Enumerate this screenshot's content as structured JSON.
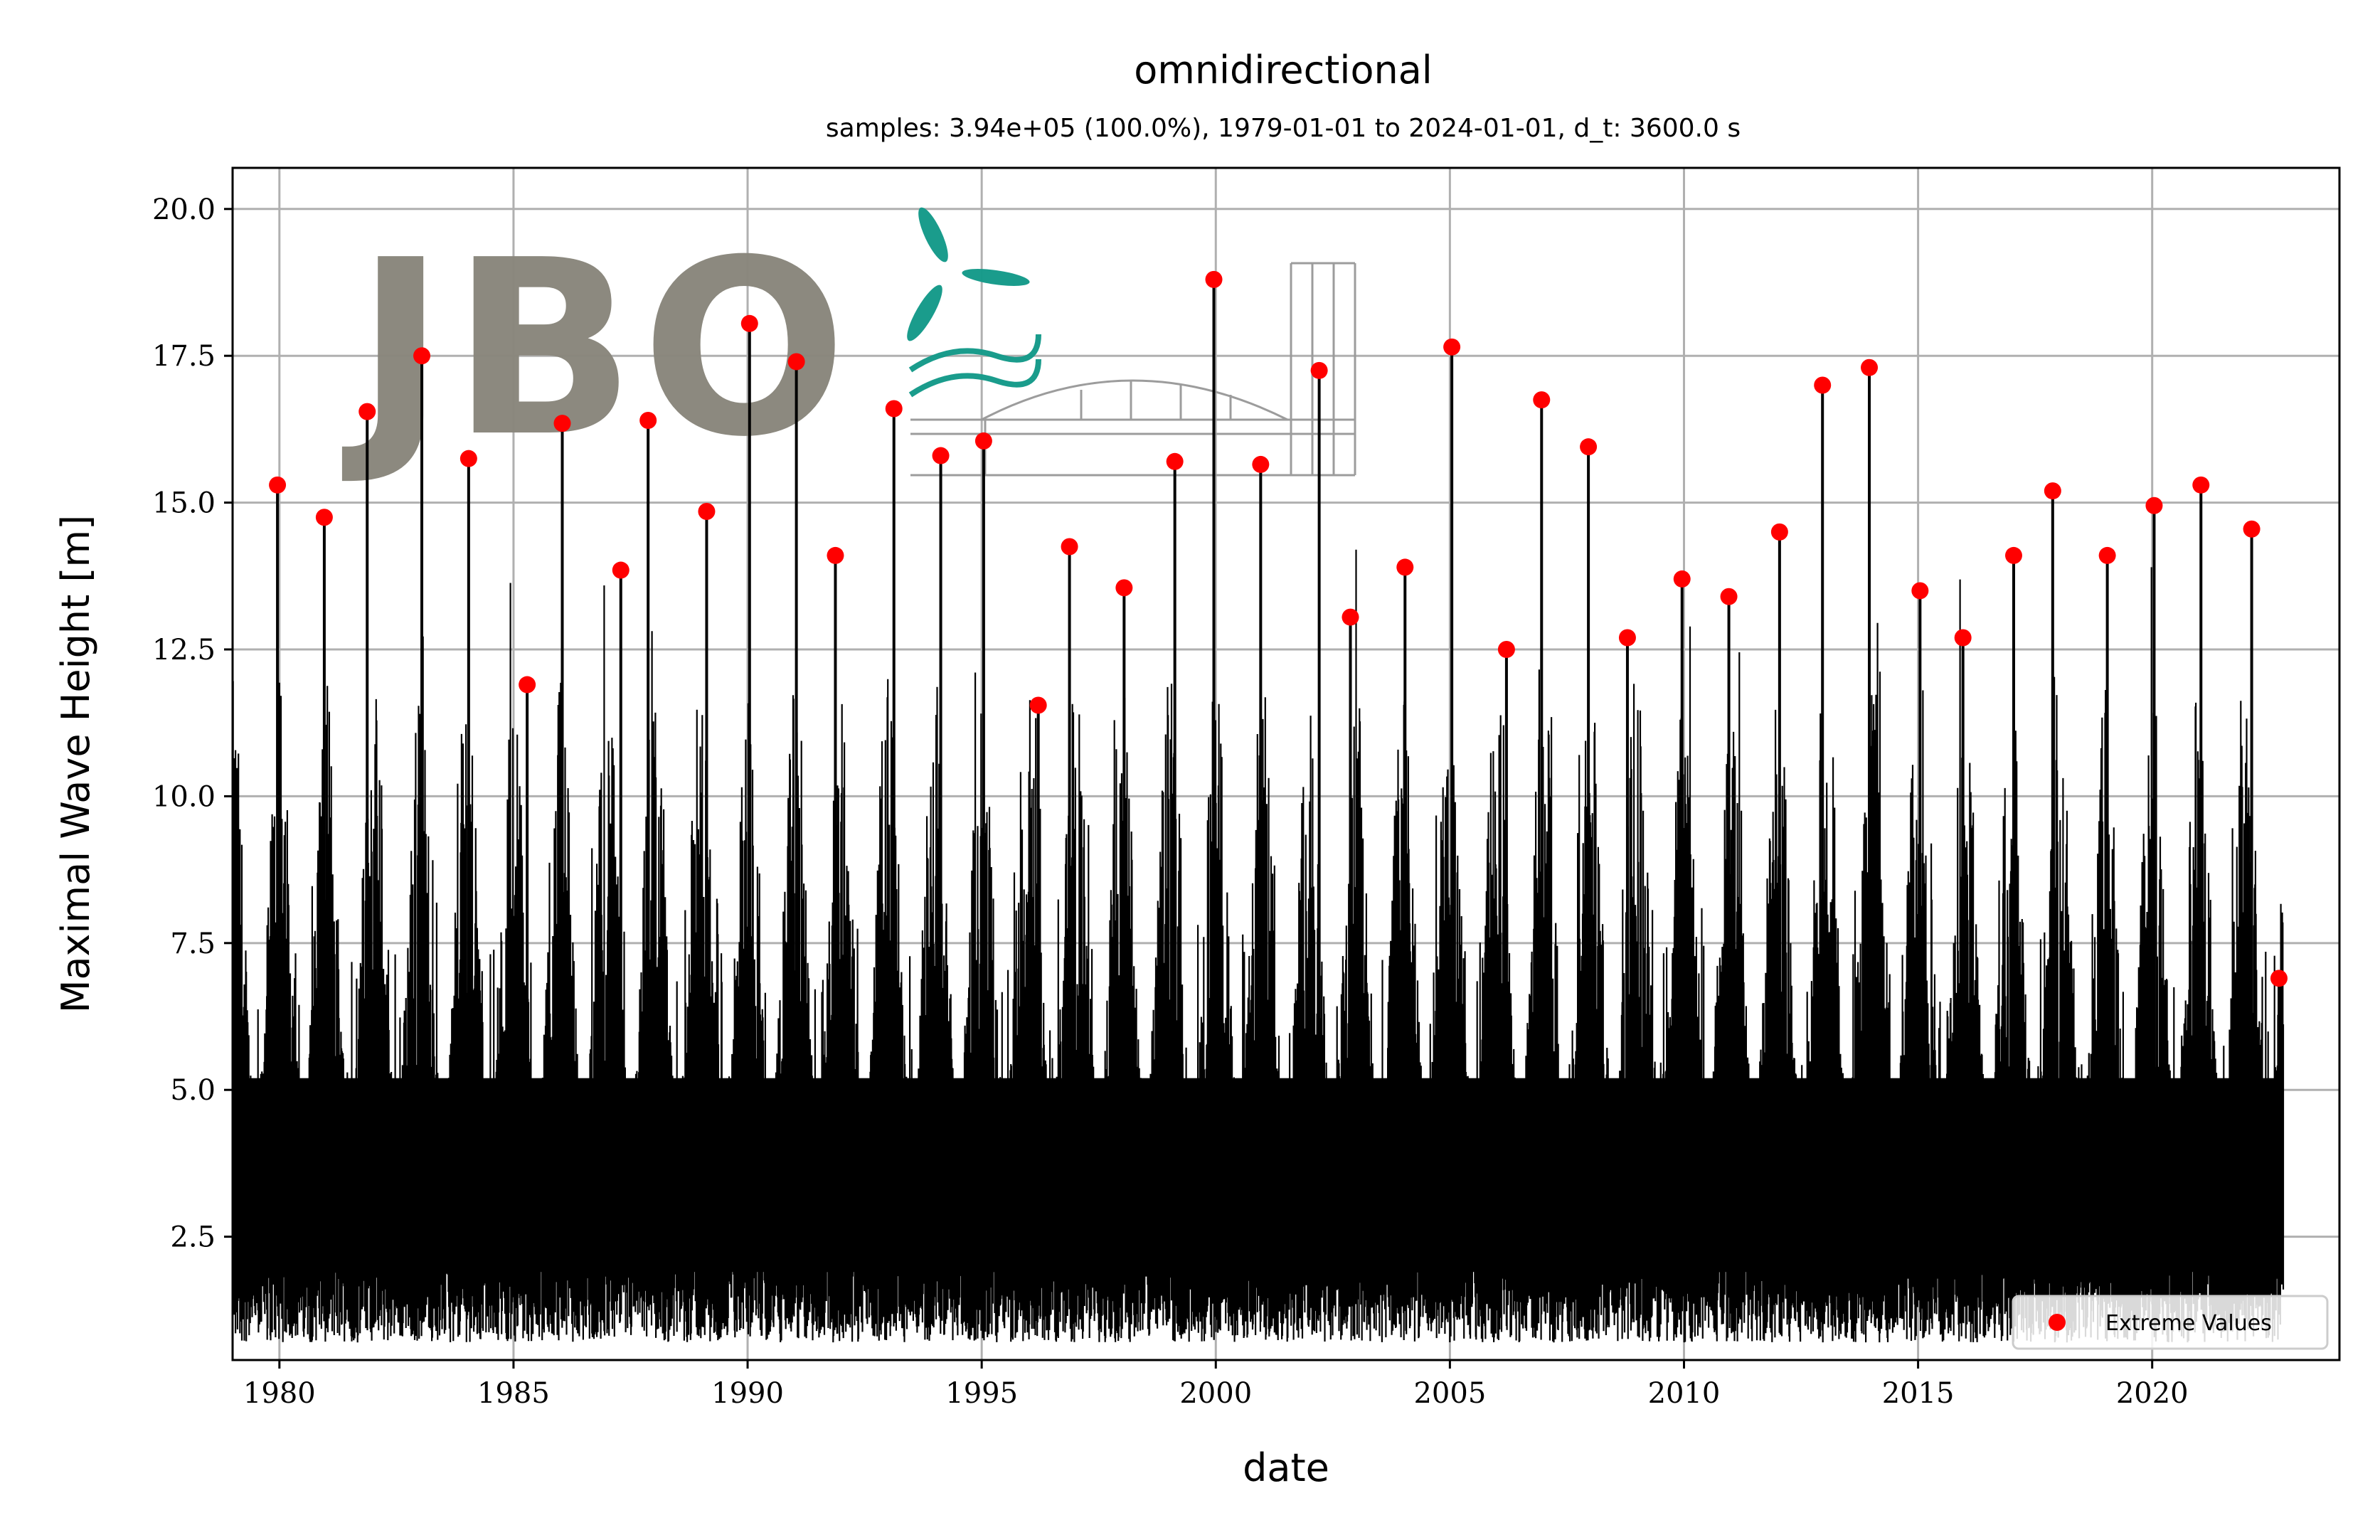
{
  "chart_data": {
    "type": "line",
    "title": "omnidirectional",
    "subtitle": "samples: 3.94e+05 (100.0%), 1979-01-01 to 2024-01-01, d_t: 3600.0 s",
    "xlabel": "date",
    "ylabel": "Maximal Wave Height [m]",
    "xlim": [
      1979.0,
      2024.0
    ],
    "ylim": [
      0.4,
      20.7
    ],
    "xticks": [
      "1980",
      "1985",
      "1990",
      "1995",
      "2000",
      "2005",
      "2010",
      "2015",
      "2020"
    ],
    "yticks": [
      "2.5",
      "5.0",
      "7.5",
      "10.0",
      "12.5",
      "15.0",
      "17.5",
      "20.0"
    ],
    "grid": true,
    "legend_position": "bottom-right",
    "line_color": "#000000",
    "marker_color": "#ff0000",
    "series": [
      {
        "name": "Extreme Values",
        "x": [
          "1979-12",
          "1980-12",
          "1981-11",
          "1983-01",
          "1984-01",
          "1985-04",
          "1986-01",
          "1987-04",
          "1987-11",
          "1989-02",
          "1990-01",
          "1991-01",
          "1991-11",
          "1993-02",
          "1994-02",
          "1995-01",
          "1996-03",
          "1996-11",
          "1998-01",
          "1999-02",
          "1999-12",
          "2000-12",
          "2002-03",
          "2002-11",
          "2004-01",
          "2005-01",
          "2006-03",
          "2006-12",
          "2007-12",
          "2008-10",
          "2009-12",
          "2010-12",
          "2012-01",
          "2012-12",
          "2013-12",
          "2015-01",
          "2015-12",
          "2017-01",
          "2017-11",
          "2019-01",
          "2020-01",
          "2021-01",
          "2022-02",
          "2022-09"
        ],
        "values": [
          15.3,
          14.75,
          16.55,
          17.5,
          15.75,
          11.9,
          16.35,
          13.85,
          16.4,
          14.85,
          18.05,
          17.4,
          14.1,
          16.6,
          15.8,
          16.05,
          11.55,
          14.25,
          13.55,
          15.7,
          18.8,
          15.65,
          17.25,
          13.05,
          13.9,
          17.65,
          12.5,
          16.75,
          15.95,
          12.7,
          13.7,
          13.4,
          14.5,
          17.0,
          17.3,
          13.5,
          12.7,
          14.1,
          15.2,
          14.1,
          14.95,
          15.3,
          14.55,
          6.9
        ]
      }
    ]
  },
  "legend": {
    "label": "Extreme Values"
  },
  "watermark": {
    "text": "JBO"
  }
}
